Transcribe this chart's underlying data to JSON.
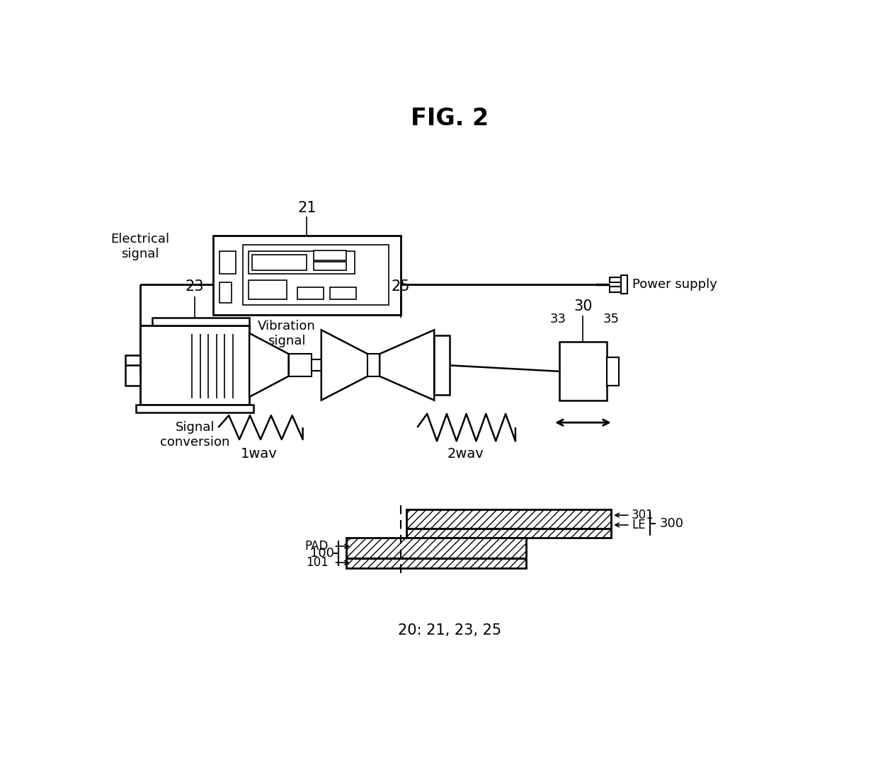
{
  "title": "FIG. 2",
  "bg_color": "#ffffff",
  "line_color": "#000000",
  "fig_width": 12.4,
  "fig_height": 11.01,
  "labels": {
    "electrical_signal": "Electrical\nsignal",
    "power_supply": "Power supply",
    "vibration_signal": "Vibration\nsignal",
    "signal_conversion": "Signal\nconversion",
    "wav1": "1wav",
    "wav2": "2wav",
    "num_21": "21",
    "num_23": "23",
    "num_25": "25",
    "num_30": "30",
    "num_33": "33",
    "num_35": "35",
    "num_100": "100",
    "num_101": "101",
    "num_300": "300",
    "num_301": "301",
    "le": "LE",
    "pad": "PAD",
    "bottom_label": "20: 21, 23, 25"
  }
}
